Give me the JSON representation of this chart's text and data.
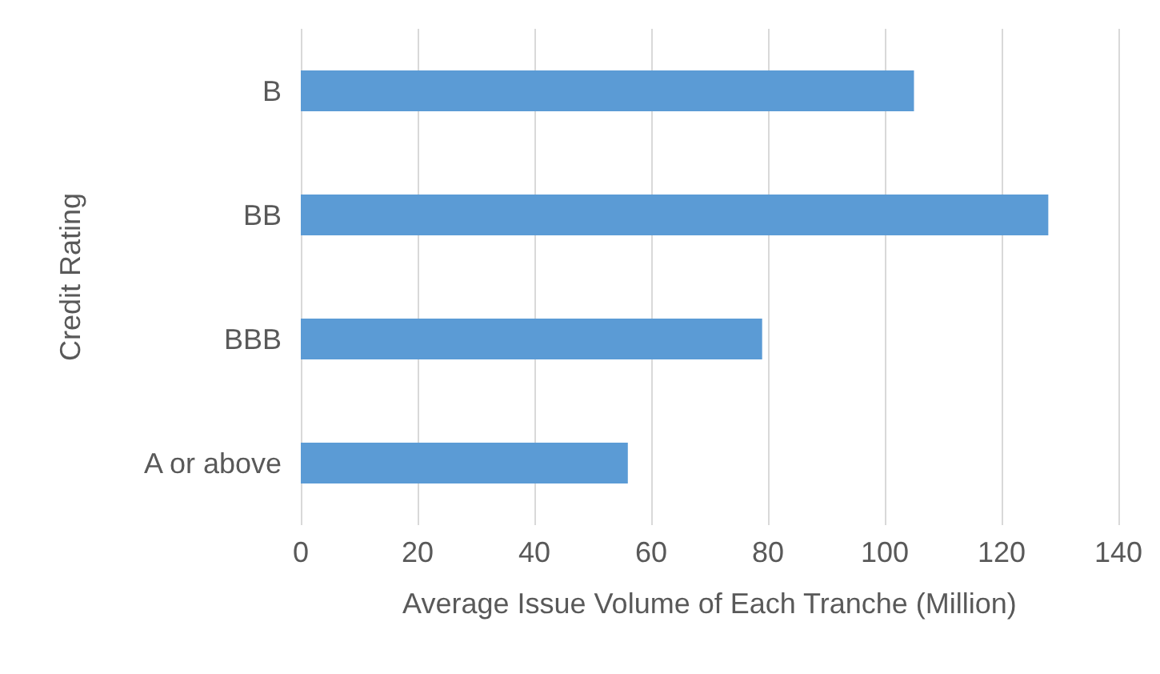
{
  "chart_data": {
    "type": "bar",
    "orientation": "horizontal",
    "xlabel": "Average Issue Volume of Each Tranche (Million)",
    "ylabel": "Credit Rating",
    "categories": [
      "B",
      "BB",
      "BBB",
      "A or above"
    ],
    "values": [
      105,
      128,
      79,
      56
    ],
    "color": "#5b9bd5",
    "xlim": [
      0,
      140
    ],
    "xticks": [
      0,
      20,
      40,
      60,
      80,
      100,
      120,
      140
    ],
    "grid": "x"
  }
}
